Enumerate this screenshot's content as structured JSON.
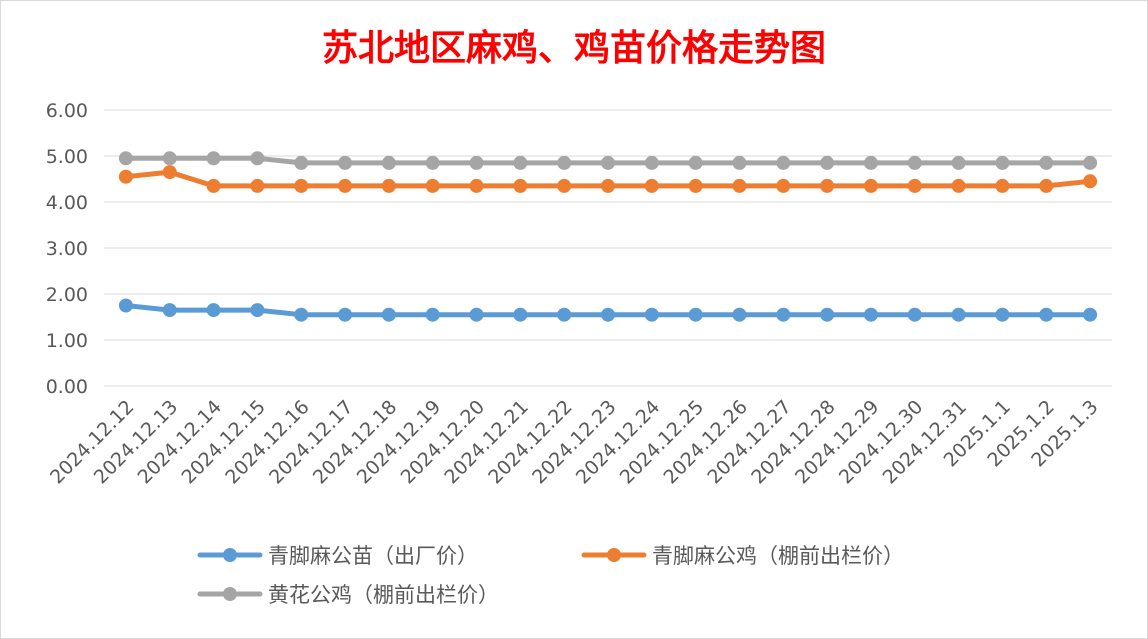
{
  "chart_data": {
    "type": "line",
    "title": "苏北地区麻鸡、鸡苗价格走势图",
    "title_color": "#ff0000",
    "categories": [
      "2024.12.12",
      "2024.12.13",
      "2024.12.14",
      "2024.12.15",
      "2024.12.16",
      "2024.12.17",
      "2024.12.18",
      "2024.12.19",
      "2024.12.20",
      "2024.12.21",
      "2024.12.22",
      "2024.12.23",
      "2024.12.24",
      "2024.12.25",
      "2024.12.26",
      "2024.12.27",
      "2024.12.28",
      "2024.12.29",
      "2024.12.30",
      "2024.12.31",
      "2025.1.1",
      "2025.1.2",
      "2025.1.3"
    ],
    "y_ticks": [
      "0.00",
      "1.00",
      "2.00",
      "3.00",
      "4.00",
      "5.00",
      "6.00"
    ],
    "ylim": [
      0,
      6
    ],
    "grid": true,
    "legend_position": "bottom",
    "series": [
      {
        "name": "青脚麻公苗（出厂价）",
        "color": "#5b9bd5",
        "values": [
          1.75,
          1.65,
          1.65,
          1.65,
          1.55,
          1.55,
          1.55,
          1.55,
          1.55,
          1.55,
          1.55,
          1.55,
          1.55,
          1.55,
          1.55,
          1.55,
          1.55,
          1.55,
          1.55,
          1.55,
          1.55,
          1.55,
          1.55
        ]
      },
      {
        "name": "青脚麻公鸡（棚前出栏价）",
        "color": "#ed7d31",
        "values": [
          4.55,
          4.65,
          4.35,
          4.35,
          4.35,
          4.35,
          4.35,
          4.35,
          4.35,
          4.35,
          4.35,
          4.35,
          4.35,
          4.35,
          4.35,
          4.35,
          4.35,
          4.35,
          4.35,
          4.35,
          4.35,
          4.35,
          4.45
        ]
      },
      {
        "name": "黄花公鸡（棚前出栏价）",
        "color": "#a5a5a5",
        "values": [
          4.95,
          4.95,
          4.95,
          4.95,
          4.85,
          4.85,
          4.85,
          4.85,
          4.85,
          4.85,
          4.85,
          4.85,
          4.85,
          4.85,
          4.85,
          4.85,
          4.85,
          4.85,
          4.85,
          4.85,
          4.85,
          4.85,
          4.85
        ]
      }
    ]
  }
}
